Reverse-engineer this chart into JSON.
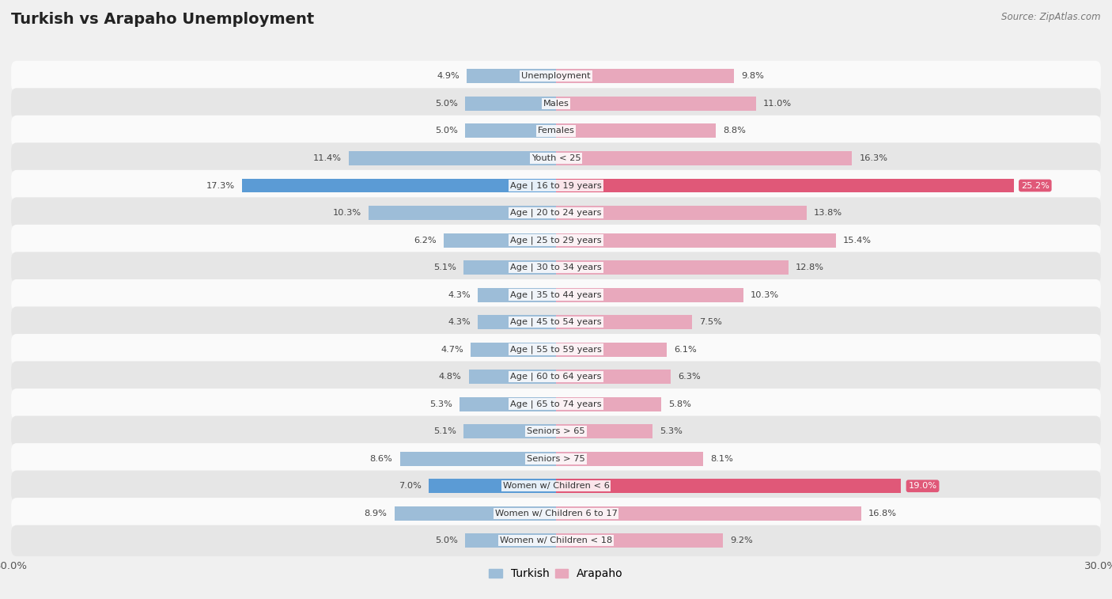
{
  "title": "Turkish vs Arapaho Unemployment",
  "source": "Source: ZipAtlas.com",
  "categories": [
    "Unemployment",
    "Males",
    "Females",
    "Youth < 25",
    "Age | 16 to 19 years",
    "Age | 20 to 24 years",
    "Age | 25 to 29 years",
    "Age | 30 to 34 years",
    "Age | 35 to 44 years",
    "Age | 45 to 54 years",
    "Age | 55 to 59 years",
    "Age | 60 to 64 years",
    "Age | 65 to 74 years",
    "Seniors > 65",
    "Seniors > 75",
    "Women w/ Children < 6",
    "Women w/ Children 6 to 17",
    "Women w/ Children < 18"
  ],
  "turkish": [
    4.9,
    5.0,
    5.0,
    11.4,
    17.3,
    10.3,
    6.2,
    5.1,
    4.3,
    4.3,
    4.7,
    4.8,
    5.3,
    5.1,
    8.6,
    7.0,
    8.9,
    5.0
  ],
  "arapaho": [
    9.8,
    11.0,
    8.8,
    16.3,
    25.2,
    13.8,
    15.4,
    12.8,
    10.3,
    7.5,
    6.1,
    6.3,
    5.8,
    5.3,
    8.1,
    19.0,
    16.8,
    9.2
  ],
  "turkish_color": "#9dbdd8",
  "arapaho_color": "#e8a8bc",
  "turkish_highlight": "#5b9bd5",
  "arapaho_highlight": "#e05878",
  "axis_limit": 30.0,
  "bg_color": "#f0f0f0",
  "row_bg_light": "#fafafa",
  "row_bg_dark": "#e6e6e6",
  "bar_height": 0.52,
  "legend_turkish": "Turkish",
  "legend_arapaho": "Arapaho",
  "highlight_rows": [
    4,
    15
  ],
  "label_fontsize": 8.2,
  "value_fontsize": 8.2,
  "title_fontsize": 14
}
